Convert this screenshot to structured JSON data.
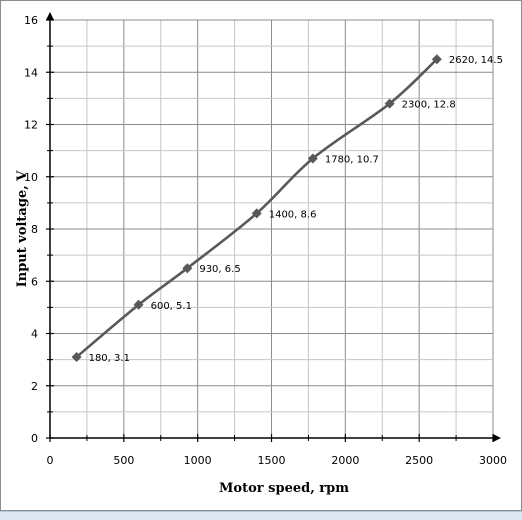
{
  "chart_data": {
    "type": "line",
    "title": "",
    "xlabel": "Motor speed, rpm",
    "ylabel": "Input voltage, V",
    "xlim": [
      0,
      3000
    ],
    "ylim": [
      0,
      16
    ],
    "x_ticks": [
      "0",
      "500",
      "1000",
      "1500",
      "2000",
      "2500",
      "3000"
    ],
    "y_ticks": [
      "0",
      "2",
      "4",
      "6",
      "8",
      "10",
      "12",
      "14",
      "16"
    ],
    "grid": true,
    "legend": "none",
    "series": [
      {
        "x": [
          180,
          600,
          930,
          1400,
          1780,
          2300,
          2620
        ],
        "y": [
          3.1,
          5.1,
          6.5,
          8.6,
          10.7,
          12.8,
          14.5
        ],
        "marker": "diamond",
        "color": "#595959"
      }
    ],
    "data_labels": [
      "180, 3.1",
      "600, 5.1",
      "930, 6.5",
      "1400, 8.6",
      "1780, 10.7",
      "2300, 12.8",
      "2620, 14.5"
    ]
  }
}
